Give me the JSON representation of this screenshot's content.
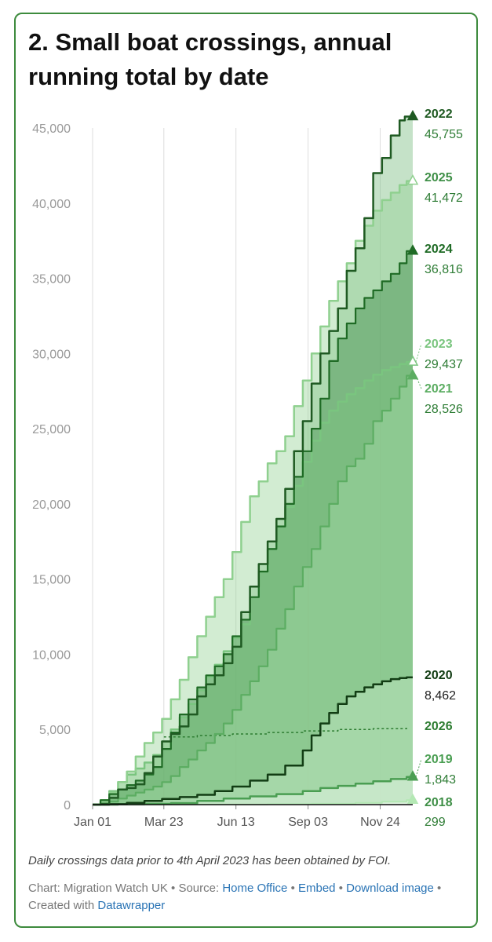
{
  "title": "2. Small boat crossings, annual running total by date",
  "note": "Daily crossings data prior to 4th April 2023 has been obtained by FOI.",
  "credits": {
    "chart_prefix": "Chart: Migration Watch UK",
    "sep": " • ",
    "source_prefix": "Source: ",
    "source_link": "Home Office",
    "embed_link": "Embed",
    "download_link": "Download image",
    "created_prefix": "Created with ",
    "created_link": "Datawrapper"
  },
  "colors": {
    "border": "#3d8b3d",
    "link": "#2a74b5",
    "axis": "#111111",
    "grid": "#dddddd"
  },
  "chart_data": {
    "type": "area",
    "title": "2. Small boat crossings, annual running total by date",
    "xlabel": "",
    "ylabel": "",
    "ylim": [
      0,
      45000
    ],
    "xlim": [
      1,
      365
    ],
    "x_ticks": [
      {
        "day": 1,
        "label": "Jan 01"
      },
      {
        "day": 82,
        "label": "Mar 23"
      },
      {
        "day": 164,
        "label": "Jun 13"
      },
      {
        "day": 246,
        "label": "Sep 03"
      },
      {
        "day": 328,
        "label": "Nov 24"
      }
    ],
    "y_ticks": [
      0,
      5000,
      10000,
      15000,
      20000,
      25000,
      30000,
      35000,
      40000,
      45000
    ],
    "y_tick_labels": [
      "0",
      "5,000",
      "10,000",
      "15,000",
      "20,000",
      "25,000",
      "30,000",
      "35,000",
      "40,000",
      "45,000"
    ],
    "series": [
      {
        "name": "2022",
        "total": "45,755",
        "color": "#1f5a22",
        "fill": "#7fbf85",
        "fill_opacity": 0.45,
        "stroke": 2.5,
        "dash": false,
        "marker": "triangle",
        "points": [
          [
            1,
            0
          ],
          [
            10,
            50
          ],
          [
            20,
            450
          ],
          [
            30,
            1000
          ],
          [
            40,
            1100
          ],
          [
            50,
            1350
          ],
          [
            60,
            2100
          ],
          [
            70,
            3200
          ],
          [
            80,
            4200
          ],
          [
            90,
            4700
          ],
          [
            100,
            5200
          ],
          [
            110,
            6000
          ],
          [
            120,
            7200
          ],
          [
            130,
            8000
          ],
          [
            140,
            8600
          ],
          [
            150,
            9400
          ],
          [
            160,
            10500
          ],
          [
            170,
            12800
          ],
          [
            180,
            14500
          ],
          [
            190,
            16000
          ],
          [
            200,
            17500
          ],
          [
            210,
            19000
          ],
          [
            220,
            21000
          ],
          [
            230,
            23500
          ],
          [
            240,
            25500
          ],
          [
            250,
            28000
          ],
          [
            260,
            30000
          ],
          [
            270,
            31500
          ],
          [
            280,
            33000
          ],
          [
            290,
            35500
          ],
          [
            300,
            37000
          ],
          [
            310,
            39000
          ],
          [
            320,
            42000
          ],
          [
            330,
            43000
          ],
          [
            340,
            44500
          ],
          [
            350,
            45500
          ],
          [
            356,
            45755
          ],
          [
            365,
            45755
          ]
        ]
      },
      {
        "name": "2025",
        "total": "41,472",
        "color": "#8fd08f",
        "fill": "#8fd08f",
        "fill_opacity": 0.4,
        "stroke": 2.5,
        "dash": false,
        "marker": "triangle-open",
        "points": [
          [
            1,
            0
          ],
          [
            10,
            200
          ],
          [
            20,
            800
          ],
          [
            30,
            1500
          ],
          [
            40,
            2200
          ],
          [
            50,
            3200
          ],
          [
            60,
            4100
          ],
          [
            70,
            4800
          ],
          [
            80,
            5700
          ],
          [
            90,
            7000
          ],
          [
            100,
            8300
          ],
          [
            110,
            9800
          ],
          [
            120,
            11200
          ],
          [
            130,
            12500
          ],
          [
            140,
            13800
          ],
          [
            150,
            15000
          ],
          [
            160,
            16800
          ],
          [
            170,
            18800
          ],
          [
            180,
            20500
          ],
          [
            190,
            21500
          ],
          [
            200,
            22700
          ],
          [
            210,
            23500
          ],
          [
            220,
            24500
          ],
          [
            230,
            26500
          ],
          [
            240,
            28200
          ],
          [
            250,
            30000
          ],
          [
            260,
            31800
          ],
          [
            270,
            33500
          ],
          [
            280,
            34800
          ],
          [
            290,
            36000
          ],
          [
            300,
            37500
          ],
          [
            310,
            38500
          ],
          [
            320,
            39500
          ],
          [
            330,
            40200
          ],
          [
            340,
            40700
          ],
          [
            350,
            41200
          ],
          [
            358,
            41472
          ],
          [
            365,
            41472
          ]
        ]
      },
      {
        "name": "2024",
        "total": "36,816",
        "color": "#1f6b25",
        "fill": "#3d8b4a",
        "fill_opacity": 0.45,
        "stroke": 2.2,
        "dash": false,
        "marker": "triangle",
        "points": [
          [
            1,
            0
          ],
          [
            10,
            300
          ],
          [
            20,
            700
          ],
          [
            30,
            1000
          ],
          [
            40,
            1300
          ],
          [
            50,
            1600
          ],
          [
            60,
            2000
          ],
          [
            70,
            2500
          ],
          [
            80,
            3700
          ],
          [
            90,
            4800
          ],
          [
            100,
            6000
          ],
          [
            110,
            7000
          ],
          [
            120,
            7800
          ],
          [
            130,
            8600
          ],
          [
            140,
            9200
          ],
          [
            150,
            10000
          ],
          [
            160,
            11200
          ],
          [
            170,
            12300
          ],
          [
            180,
            13800
          ],
          [
            190,
            15500
          ],
          [
            200,
            17000
          ],
          [
            210,
            18500
          ],
          [
            220,
            20000
          ],
          [
            230,
            21800
          ],
          [
            240,
            23500
          ],
          [
            250,
            25000
          ],
          [
            260,
            27000
          ],
          [
            270,
            29500
          ],
          [
            280,
            31000
          ],
          [
            290,
            32000
          ],
          [
            300,
            33000
          ],
          [
            310,
            33700
          ],
          [
            320,
            34200
          ],
          [
            330,
            34800
          ],
          [
            340,
            35300
          ],
          [
            350,
            36000
          ],
          [
            358,
            36816
          ],
          [
            365,
            36816
          ]
        ]
      },
      {
        "name": "2023",
        "total": "29,437",
        "color": "#7ac57f",
        "fill": "#7ac57f",
        "fill_opacity": 0.35,
        "stroke": 2.5,
        "dash": false,
        "marker": "triangle-open",
        "points": [
          [
            1,
            0
          ],
          [
            10,
            300
          ],
          [
            20,
            900
          ],
          [
            30,
            1500
          ],
          [
            40,
            2000
          ],
          [
            50,
            2400
          ],
          [
            60,
            2800
          ],
          [
            70,
            3300
          ],
          [
            80,
            4200
          ],
          [
            90,
            5000
          ],
          [
            100,
            5800
          ],
          [
            110,
            6700
          ],
          [
            120,
            7600
          ],
          [
            130,
            8500
          ],
          [
            140,
            9300
          ],
          [
            150,
            10200
          ],
          [
            160,
            11100
          ],
          [
            170,
            12000
          ],
          [
            180,
            13800
          ],
          [
            190,
            15500
          ],
          [
            200,
            17000
          ],
          [
            210,
            18500
          ],
          [
            220,
            19800
          ],
          [
            230,
            21200
          ],
          [
            240,
            22800
          ],
          [
            250,
            24200
          ],
          [
            260,
            25400
          ],
          [
            270,
            26200
          ],
          [
            280,
            26800
          ],
          [
            290,
            27300
          ],
          [
            300,
            27700
          ],
          [
            310,
            28200
          ],
          [
            320,
            28600
          ],
          [
            330,
            28900
          ],
          [
            340,
            29100
          ],
          [
            350,
            29300
          ],
          [
            358,
            29437
          ],
          [
            365,
            29437
          ]
        ]
      },
      {
        "name": "2021",
        "total": "28,526",
        "color": "#5cad62",
        "fill": "#a9dba9",
        "fill_opacity": 0.4,
        "stroke": 2.2,
        "dash": false,
        "marker": "triangle",
        "points": [
          [
            1,
            0
          ],
          [
            10,
            80
          ],
          [
            20,
            200
          ],
          [
            30,
            400
          ],
          [
            40,
            600
          ],
          [
            50,
            800
          ],
          [
            60,
            1000
          ],
          [
            70,
            1200
          ],
          [
            80,
            1500
          ],
          [
            90,
            1900
          ],
          [
            100,
            2500
          ],
          [
            110,
            3000
          ],
          [
            120,
            3600
          ],
          [
            130,
            4100
          ],
          [
            140,
            4700
          ],
          [
            150,
            5400
          ],
          [
            160,
            6300
          ],
          [
            170,
            7300
          ],
          [
            180,
            8200
          ],
          [
            190,
            9200
          ],
          [
            200,
            10300
          ],
          [
            210,
            11700
          ],
          [
            220,
            13000
          ],
          [
            230,
            14500
          ],
          [
            240,
            15800
          ],
          [
            250,
            17000
          ],
          [
            260,
            18500
          ],
          [
            270,
            20000
          ],
          [
            280,
            21500
          ],
          [
            290,
            22500
          ],
          [
            300,
            23000
          ],
          [
            310,
            24000
          ],
          [
            320,
            25500
          ],
          [
            330,
            26200
          ],
          [
            340,
            27000
          ],
          [
            350,
            27800
          ],
          [
            358,
            28526
          ],
          [
            365,
            28526
          ]
        ]
      },
      {
        "name": "2020",
        "total": "8,462",
        "color": "#123d14",
        "fill": "#d4f0d4",
        "fill_opacity": 0.35,
        "stroke": 2.5,
        "dash": false,
        "marker": "none",
        "points": [
          [
            1,
            0
          ],
          [
            20,
            30
          ],
          [
            40,
            120
          ],
          [
            60,
            250
          ],
          [
            80,
            380
          ],
          [
            100,
            500
          ],
          [
            120,
            650
          ],
          [
            140,
            900
          ],
          [
            160,
            1200
          ],
          [
            180,
            1600
          ],
          [
            200,
            2000
          ],
          [
            220,
            2600
          ],
          [
            240,
            3600
          ],
          [
            250,
            4600
          ],
          [
            260,
            5400
          ],
          [
            270,
            6100
          ],
          [
            280,
            6700
          ],
          [
            290,
            7200
          ],
          [
            300,
            7500
          ],
          [
            310,
            7800
          ],
          [
            320,
            8000
          ],
          [
            330,
            8200
          ],
          [
            340,
            8350
          ],
          [
            350,
            8420
          ],
          [
            358,
            8462
          ],
          [
            365,
            8462
          ]
        ]
      },
      {
        "name": "2019",
        "total": "1,843",
        "color": "#4a9e52",
        "fill": "#e8f7e8",
        "fill_opacity": 0.5,
        "stroke": 2.5,
        "dash": false,
        "marker": "triangle",
        "points": [
          [
            1,
            0
          ],
          [
            30,
            20
          ],
          [
            60,
            50
          ],
          [
            90,
            100
          ],
          [
            120,
            250
          ],
          [
            150,
            400
          ],
          [
            180,
            550
          ],
          [
            210,
            700
          ],
          [
            240,
            900
          ],
          [
            260,
            1100
          ],
          [
            280,
            1250
          ],
          [
            300,
            1400
          ],
          [
            320,
            1550
          ],
          [
            340,
            1700
          ],
          [
            358,
            1843
          ],
          [
            365,
            1843
          ]
        ]
      },
      {
        "name": "2018",
        "total": "299",
        "color": "#b4e8b4",
        "fill": "#f2fbf2",
        "fill_opacity": 0.5,
        "stroke": 2,
        "dash": false,
        "marker": "triangle",
        "points": [
          [
            1,
            0
          ],
          [
            100,
            10
          ],
          [
            200,
            30
          ],
          [
            250,
            60
          ],
          [
            300,
            120
          ],
          [
            330,
            200
          ],
          [
            358,
            299
          ],
          [
            365,
            299
          ]
        ]
      },
      {
        "name": "2026",
        "total": "",
        "color": "#2e7d32",
        "fill": "none",
        "fill_opacity": 0,
        "stroke": 1.5,
        "dash": true,
        "marker": "none",
        "points": [
          [
            82,
            4500
          ],
          [
            120,
            4600
          ],
          [
            160,
            4700
          ],
          [
            200,
            4800
          ],
          [
            240,
            4900
          ],
          [
            280,
            5000
          ],
          [
            320,
            5050
          ],
          [
            358,
            5100
          ]
        ]
      }
    ]
  }
}
